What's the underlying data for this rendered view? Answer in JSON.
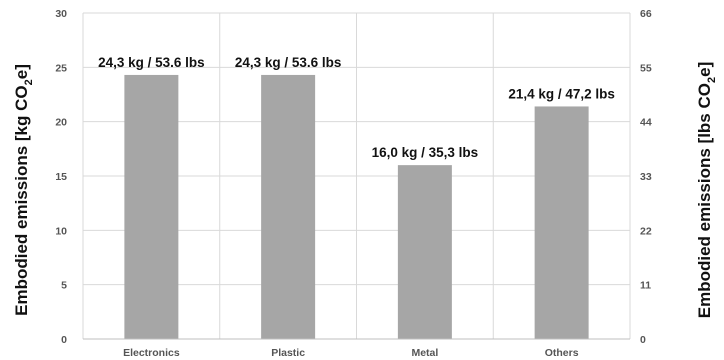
{
  "chart_data": {
    "type": "bar",
    "categories": [
      "Electronics",
      "Plastic",
      "Metal",
      "Others"
    ],
    "values": [
      24.3,
      24.3,
      16.0,
      21.4
    ],
    "data_labels": [
      "24,3 kg / 53.6 lbs",
      "24,3 kg / 53.6 lbs",
      "16,0 kg / 35,3 lbs",
      "21,4 kg / 47,2 lbs"
    ],
    "ylabel_left": {
      "pre": "Embodied emissions [kg CO",
      "sub": "2",
      "post": "e]"
    },
    "ylabel_right": {
      "pre": "Embodied emissions [lbs CO",
      "sub": "2",
      "post": "e]"
    },
    "ylim_left": [
      0,
      30
    ],
    "yticks_left": [
      "0",
      "5",
      "10",
      "15",
      "20",
      "25",
      "30"
    ],
    "ylim_right": [
      0,
      66
    ],
    "yticks_right": [
      "0",
      "11",
      "22",
      "33",
      "44",
      "55",
      "66"
    ],
    "grid": true,
    "bar_color": "#a6a6a6"
  }
}
